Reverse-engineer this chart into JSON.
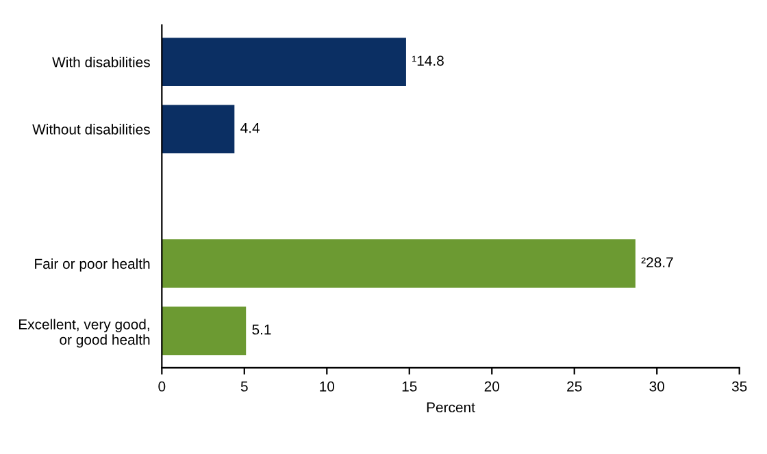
{
  "chart_data": {
    "type": "bar",
    "orientation": "horizontal",
    "xlabel": "Percent",
    "categories": [
      "With disabilities",
      "Without disabilities",
      null,
      "Fair or poor health",
      "Excellent, very good,\nor good health"
    ],
    "values": [
      14.8,
      4.4,
      null,
      28.7,
      5.1
    ],
    "colors": [
      "#0b2f63",
      "#0b2f63",
      null,
      "#6c9a32",
      "#6c9a32"
    ],
    "value_labels": [
      "¹14.8",
      "4.4",
      null,
      "²28.7",
      "5.1"
    ],
    "xlim": [
      0,
      35
    ],
    "xticks": [
      0,
      5,
      10,
      15,
      20,
      25,
      30,
      35
    ],
    "grid": false,
    "legend": false
  }
}
